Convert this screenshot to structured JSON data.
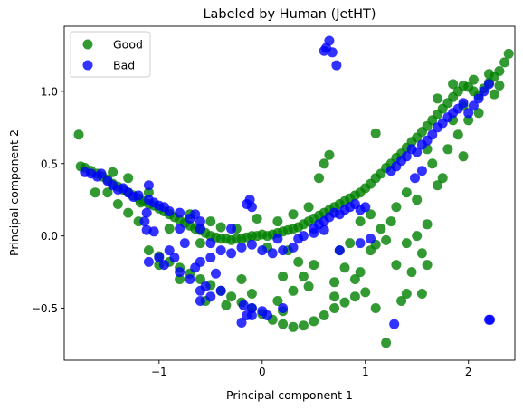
{
  "chart_data": {
    "type": "scatter",
    "title": "Labeled by Human (JetHT)",
    "xlabel": "Principal component 1",
    "ylabel": "Principal component 2",
    "xlim": [
      -1.92,
      2.45
    ],
    "ylim": [
      -0.86,
      1.45
    ],
    "xticks": [
      -1,
      0,
      1,
      2
    ],
    "xtick_labels": [
      "−1",
      "0",
      "1",
      "2"
    ],
    "yticks": [
      -0.5,
      0.0,
      0.5,
      1.0
    ],
    "ytick_labels": [
      "−0.5",
      "0.0",
      "0.5",
      "1.0"
    ],
    "grid": false,
    "legend_position": "top-left",
    "series": [
      {
        "name": "Good",
        "color": "#008000",
        "opacity": 0.8,
        "points": [
          [
            -1.78,
            0.7
          ],
          [
            -1.76,
            0.48
          ],
          [
            -1.72,
            0.47
          ],
          [
            -1.66,
            0.45
          ],
          [
            -1.6,
            0.43
          ],
          [
            -1.55,
            0.41
          ],
          [
            -1.5,
            0.39
          ],
          [
            -1.45,
            0.36
          ],
          [
            -1.4,
            0.34
          ],
          [
            -1.35,
            0.32
          ],
          [
            -1.3,
            0.3
          ],
          [
            -1.25,
            0.28
          ],
          [
            -1.2,
            0.26
          ],
          [
            -1.15,
            0.24
          ],
          [
            -1.1,
            0.22
          ],
          [
            -1.05,
            0.21
          ],
          [
            -1.0,
            0.19
          ],
          [
            -0.95,
            0.17
          ],
          [
            -0.9,
            0.15
          ],
          [
            -0.85,
            0.13
          ],
          [
            -0.8,
            0.11
          ],
          [
            -0.75,
            0.09
          ],
          [
            -0.7,
            0.07
          ],
          [
            -0.65,
            0.05
          ],
          [
            -0.6,
            0.04
          ],
          [
            -0.55,
            0.02
          ],
          [
            -0.5,
            0.0
          ],
          [
            -0.45,
            -0.01
          ],
          [
            -0.4,
            -0.02
          ],
          [
            -0.35,
            -0.02
          ],
          [
            -0.3,
            -0.03
          ],
          [
            -0.25,
            -0.02
          ],
          [
            -0.2,
            -0.02
          ],
          [
            -0.15,
            -0.01
          ],
          [
            -0.1,
            0.0
          ],
          [
            -0.05,
            0.0
          ],
          [
            0.0,
            0.01
          ],
          [
            0.05,
            0.0
          ],
          [
            0.1,
            0.01
          ],
          [
            0.15,
            0.02
          ],
          [
            0.2,
            0.03
          ],
          [
            0.25,
            0.04
          ],
          [
            0.3,
            0.05
          ],
          [
            0.35,
            0.06
          ],
          [
            0.4,
            0.08
          ],
          [
            0.45,
            0.1
          ],
          [
            0.5,
            0.12
          ],
          [
            0.55,
            0.14
          ],
          [
            0.6,
            0.16
          ],
          [
            0.65,
            0.18
          ],
          [
            0.7,
            0.2
          ],
          [
            0.75,
            0.22
          ],
          [
            0.8,
            0.24
          ],
          [
            0.85,
            0.26
          ],
          [
            0.9,
            0.28
          ],
          [
            0.95,
            0.3
          ],
          [
            1.0,
            0.33
          ],
          [
            1.05,
            0.36
          ],
          [
            1.1,
            0.4
          ],
          [
            1.15,
            0.43
          ],
          [
            1.2,
            0.47
          ],
          [
            1.25,
            0.5
          ],
          [
            1.3,
            0.54
          ],
          [
            1.35,
            0.57
          ],
          [
            1.4,
            0.61
          ],
          [
            1.45,
            0.65
          ],
          [
            1.5,
            0.68
          ],
          [
            1.55,
            0.72
          ],
          [
            1.6,
            0.76
          ],
          [
            1.65,
            0.8
          ],
          [
            1.7,
            0.84
          ],
          [
            1.75,
            0.88
          ],
          [
            1.8,
            0.92
          ],
          [
            1.85,
            0.96
          ],
          [
            1.9,
            1.0
          ],
          [
            1.95,
            1.04
          ],
          [
            2.0,
            1.03
          ],
          [
            2.05,
            1.0
          ],
          [
            2.1,
            0.97
          ],
          [
            2.15,
            1.02
          ],
          [
            2.2,
            1.06
          ],
          [
            2.25,
            1.1
          ],
          [
            2.3,
            1.14
          ],
          [
            2.35,
            1.2
          ],
          [
            2.39,
            1.26
          ],
          [
            2.3,
            1.04
          ],
          [
            1.1,
            0.71
          ],
          [
            -1.18,
            0.23
          ],
          [
            -1.3,
            0.16
          ],
          [
            -1.2,
            0.1
          ],
          [
            -1.1,
            -0.1
          ],
          [
            -1.0,
            -0.14
          ],
          [
            -0.9,
            -0.18
          ],
          [
            -0.8,
            -0.22
          ],
          [
            -0.7,
            -0.26
          ],
          [
            -0.6,
            -0.3
          ],
          [
            -0.5,
            -0.34
          ],
          [
            -0.4,
            -0.38
          ],
          [
            -0.3,
            -0.42
          ],
          [
            -0.2,
            -0.46
          ],
          [
            -0.1,
            -0.5
          ],
          [
            0.0,
            -0.54
          ],
          [
            0.1,
            -0.58
          ],
          [
            0.2,
            -0.61
          ],
          [
            0.3,
            -0.63
          ],
          [
            0.4,
            -0.62
          ],
          [
            0.5,
            -0.59
          ],
          [
            0.6,
            -0.55
          ],
          [
            0.7,
            -0.5
          ],
          [
            0.8,
            -0.46
          ],
          [
            0.9,
            -0.42
          ],
          [
            1.0,
            -0.39
          ],
          [
            0.5,
            -0.2
          ],
          [
            0.4,
            -0.28
          ],
          [
            0.3,
            -0.38
          ],
          [
            0.7,
            -0.32
          ],
          [
            0.8,
            -0.22
          ],
          [
            0.9,
            -0.3
          ],
          [
            1.05,
            -0.1
          ],
          [
            1.1,
            -0.06
          ],
          [
            1.2,
            -0.03
          ],
          [
            1.3,
            -0.2
          ],
          [
            1.4,
            -0.05
          ],
          [
            1.5,
            0.0
          ],
          [
            1.6,
            0.08
          ],
          [
            1.55,
            -0.12
          ],
          [
            1.45,
            -0.25
          ],
          [
            1.6,
            -0.2
          ],
          [
            1.4,
            -0.4
          ],
          [
            1.35,
            -0.45
          ],
          [
            1.55,
            -0.4
          ],
          [
            1.1,
            -0.5
          ],
          [
            0.35,
            -0.18
          ],
          [
            0.45,
            -0.35
          ],
          [
            0.2,
            -0.28
          ],
          [
            0.85,
            -0.05
          ],
          [
            0.75,
            -0.1
          ],
          [
            0.6,
            0.5
          ],
          [
            0.55,
            0.4
          ],
          [
            0.65,
            0.56
          ],
          [
            -0.1,
            -0.4
          ],
          [
            -0.2,
            -0.3
          ],
          [
            0.15,
            -0.45
          ],
          [
            1.2,
            -0.74
          ],
          [
            1.5,
            0.25
          ],
          [
            1.7,
            0.35
          ],
          [
            1.8,
            0.6
          ],
          [
            1.95,
            0.55
          ],
          [
            2.0,
            0.8
          ],
          [
            1.65,
            0.5
          ],
          [
            1.3,
            0.2
          ],
          [
            1.4,
            0.3
          ],
          [
            1.9,
            0.7
          ],
          [
            2.1,
            0.85
          ],
          [
            1.75,
            0.4
          ],
          [
            1.25,
            0.1
          ],
          [
            -1.62,
            0.3
          ],
          [
            -0.9,
            0.05
          ],
          [
            -0.6,
            -0.05
          ],
          [
            -0.4,
            0.06
          ],
          [
            -0.25,
            0.05
          ],
          [
            0.05,
            -0.08
          ],
          [
            0.25,
            -0.1
          ],
          [
            -1.0,
            -0.2
          ],
          [
            -0.8,
            -0.3
          ],
          [
            -0.55,
            -0.45
          ],
          [
            -0.35,
            -0.48
          ],
          [
            0.2,
            -0.52
          ],
          [
            0.7,
            -0.42
          ],
          [
            0.95,
            -0.25
          ],
          [
            1.15,
            0.05
          ],
          [
            1.05,
            0.15
          ],
          [
            0.95,
            0.1
          ],
          [
            -1.4,
            0.22
          ],
          [
            -1.5,
            0.3
          ],
          [
            -1.3,
            0.4
          ],
          [
            -1.1,
            0.3
          ],
          [
            -1.45,
            0.44
          ],
          [
            -0.7,
            0.15
          ],
          [
            -0.5,
            0.1
          ],
          [
            0.3,
            0.15
          ],
          [
            0.45,
            0.2
          ],
          [
            0.15,
            0.1
          ],
          [
            -0.05,
            0.12
          ],
          [
            2.2,
            1.12
          ],
          [
            2.05,
            1.08
          ],
          [
            1.85,
            1.05
          ],
          [
            1.7,
            0.95
          ],
          [
            1.95,
            0.9
          ],
          [
            2.25,
            0.98
          ],
          [
            1.6,
            0.6
          ],
          [
            1.85,
            0.8
          ]
        ]
      },
      {
        "name": "Bad",
        "color": "#0000ff",
        "opacity": 0.8,
        "points": [
          [
            -1.72,
            0.44
          ],
          [
            -1.66,
            0.43
          ],
          [
            -1.6,
            0.41
          ],
          [
            -1.56,
            0.43
          ],
          [
            -1.5,
            0.38
          ],
          [
            -1.45,
            0.35
          ],
          [
            -1.4,
            0.32
          ],
          [
            -1.35,
            0.33
          ],
          [
            -1.3,
            0.3
          ],
          [
            -1.25,
            0.27
          ],
          [
            -1.2,
            0.28
          ],
          [
            -1.1,
            0.25
          ],
          [
            -1.0,
            0.21
          ],
          [
            -1.05,
            0.23
          ],
          [
            -0.95,
            0.2
          ],
          [
            -0.9,
            0.17
          ],
          [
            -0.8,
            0.16
          ],
          [
            -0.7,
            0.12
          ],
          [
            -0.65,
            0.15
          ],
          [
            -0.6,
            0.1
          ],
          [
            -1.1,
            0.35
          ],
          [
            -1.12,
            0.16
          ],
          [
            -1.14,
            0.1
          ],
          [
            -0.8,
            0.05
          ],
          [
            -0.6,
            0.05
          ],
          [
            -0.5,
            -0.05
          ],
          [
            -0.4,
            -0.1
          ],
          [
            -0.3,
            -0.12
          ],
          [
            -0.2,
            -0.08
          ],
          [
            -0.1,
            -0.06
          ],
          [
            0.0,
            -0.1
          ],
          [
            0.1,
            -0.12
          ],
          [
            0.2,
            -0.1
          ],
          [
            0.3,
            -0.08
          ],
          [
            -0.5,
            -0.15
          ],
          [
            -0.6,
            -0.18
          ],
          [
            -0.9,
            -0.1
          ],
          [
            -1.0,
            -0.15
          ],
          [
            -0.95,
            -0.2
          ],
          [
            -1.1,
            -0.18
          ],
          [
            -0.8,
            -0.25
          ],
          [
            -0.7,
            -0.3
          ],
          [
            -0.6,
            -0.38
          ],
          [
            -0.5,
            -0.42
          ],
          [
            -0.4,
            -0.38
          ],
          [
            -0.45,
            -0.26
          ],
          [
            -0.6,
            -0.45
          ],
          [
            -0.55,
            -0.35
          ],
          [
            -0.15,
            0.22
          ],
          [
            -0.12,
            0.25
          ],
          [
            -0.1,
            0.2
          ],
          [
            -0.1,
            -0.5
          ],
          [
            -0.15,
            -0.55
          ],
          [
            -0.2,
            -0.6
          ],
          [
            -0.18,
            -0.48
          ],
          [
            -0.1,
            -0.55
          ],
          [
            0.0,
            -0.52
          ],
          [
            0.05,
            -0.55
          ],
          [
            0.2,
            -0.5
          ],
          [
            0.35,
            -0.02
          ],
          [
            0.4,
            0.0
          ],
          [
            0.5,
            0.05
          ],
          [
            0.55,
            0.08
          ],
          [
            0.6,
            0.1
          ],
          [
            0.65,
            0.13
          ],
          [
            0.7,
            0.16
          ],
          [
            0.75,
            0.15
          ],
          [
            0.8,
            0.18
          ],
          [
            0.85,
            0.2
          ],
          [
            0.9,
            0.22
          ],
          [
            0.95,
            0.18
          ],
          [
            1.0,
            0.2
          ],
          [
            0.5,
            0.02
          ],
          [
            0.6,
            0.04
          ],
          [
            1.25,
            0.45
          ],
          [
            1.3,
            0.48
          ],
          [
            1.35,
            0.52
          ],
          [
            1.4,
            0.55
          ],
          [
            1.45,
            0.6
          ],
          [
            1.5,
            0.58
          ],
          [
            1.55,
            0.63
          ],
          [
            1.6,
            0.66
          ],
          [
            1.65,
            0.7
          ],
          [
            1.7,
            0.75
          ],
          [
            1.75,
            0.78
          ],
          [
            1.8,
            0.82
          ],
          [
            1.85,
            0.85
          ],
          [
            1.9,
            0.88
          ],
          [
            1.95,
            0.92
          ],
          [
            2.0,
            0.85
          ],
          [
            2.05,
            0.9
          ],
          [
            2.1,
            0.95
          ],
          [
            2.15,
            1.0
          ],
          [
            2.2,
            1.05
          ],
          [
            1.48,
            0.4
          ],
          [
            1.55,
            0.45
          ],
          [
            0.6,
            1.28
          ],
          [
            0.62,
            1.3
          ],
          [
            0.65,
            1.35
          ],
          [
            0.68,
            1.27
          ],
          [
            0.72,
            1.18
          ],
          [
            -1.12,
            0.04
          ],
          [
            -1.05,
            0.03
          ],
          [
            1.05,
            -0.02
          ],
          [
            0.95,
            -0.05
          ],
          [
            1.28,
            -0.61
          ],
          [
            2.2,
            -0.58
          ],
          [
            2.21,
            -0.58
          ],
          [
            0.75,
            -0.1
          ],
          [
            0.15,
            -0.02
          ],
          [
            -0.3,
            0.05
          ],
          [
            -0.75,
            -0.05
          ],
          [
            -0.85,
            -0.15
          ],
          [
            -0.65,
            -0.22
          ]
        ]
      }
    ]
  }
}
